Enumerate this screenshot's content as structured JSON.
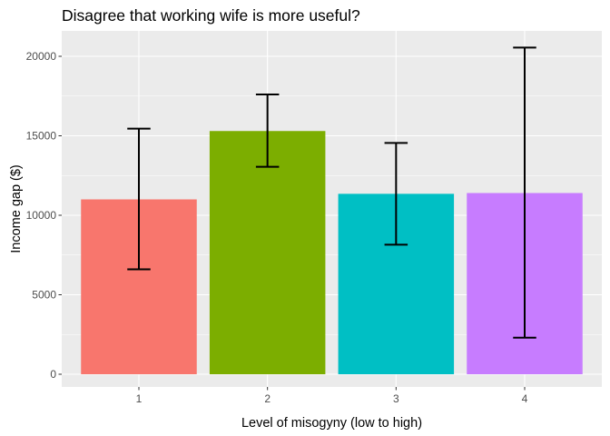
{
  "chart_data": {
    "type": "bar",
    "title": "Disagree that working wife is more useful?",
    "xlabel": "Level of misogyny (low to high)",
    "ylabel": "Income gap ($)",
    "categories": [
      "1",
      "2",
      "3",
      "4"
    ],
    "values": [
      11000,
      15300,
      11350,
      11400
    ],
    "error_low": [
      6600,
      13050,
      8150,
      2300
    ],
    "error_high": [
      15450,
      17600,
      14550,
      20550
    ],
    "colors": [
      "#F8766D",
      "#7CAE00",
      "#00BFC4",
      "#C77CFF"
    ],
    "y_ticks": [
      0,
      5000,
      10000,
      15000,
      20000
    ],
    "y_tick_labels": [
      "0",
      "5000",
      "10000",
      "15000",
      "20000"
    ],
    "ylim": [
      -800,
      21600
    ],
    "grid": true,
    "panel_background": "#EBEBEB",
    "grid_color": "#FFFFFF",
    "legend": "none"
  }
}
